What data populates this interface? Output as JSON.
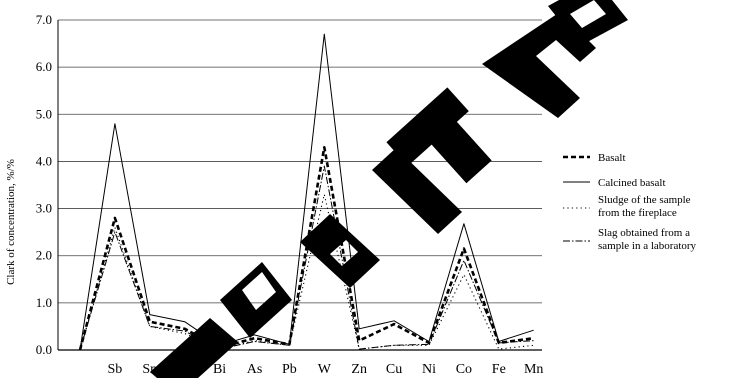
{
  "chart_data": {
    "type": "line",
    "ylabel": "Clark of concentration, %/%",
    "xlabel": "",
    "ylim": [
      0,
      7
    ],
    "yticks": [
      0,
      1,
      2,
      3,
      4,
      5,
      6,
      7
    ],
    "ytick_labels": [
      "0.0",
      "1.0",
      "2.0",
      "3.0",
      "4.0",
      "5.0",
      "6.0",
      "7.0"
    ],
    "categories": [
      "",
      "Sb",
      "Sn",
      "Mo",
      "Bi",
      "As",
      "Pb",
      "W",
      "Zn",
      "Cu",
      "Ni",
      "Co",
      "Fe",
      "Mn"
    ],
    "grid": "horizontal",
    "legend_position": "right",
    "series": [
      {
        "name": "Basalt",
        "style": "dashed-bold",
        "color": "#000000",
        "values": [
          0,
          2.8,
          0.6,
          0.45,
          0.05,
          0.25,
          0.12,
          4.3,
          0.2,
          0.55,
          0.15,
          2.15,
          0.15,
          0.25
        ]
      },
      {
        "name": "Calcined basalt",
        "style": "solid",
        "color": "#000000",
        "values": [
          0,
          4.8,
          0.75,
          0.6,
          0.1,
          0.32,
          0.12,
          6.7,
          0.45,
          0.62,
          0.18,
          2.68,
          0.18,
          0.42
        ]
      },
      {
        "name": "Sludge of the sample from the fireplace",
        "style": "dotted",
        "color": "#000000",
        "values": [
          0,
          2.6,
          0.5,
          0.35,
          0.03,
          0.2,
          0.1,
          3.3,
          0.02,
          0.1,
          0.1,
          1.6,
          0.02,
          0.1
        ]
      },
      {
        "name": "Slag obtained from a sample in a laboratory",
        "style": "dashdot",
        "color": "#000000",
        "values": [
          0,
          2.5,
          0.5,
          0.4,
          0.02,
          0.18,
          0.1,
          3.9,
          0.02,
          0.1,
          0.12,
          1.9,
          0.15,
          0.2
        ]
      }
    ]
  },
  "legend": {
    "items": [
      {
        "label_lines": [
          "Basalt"
        ]
      },
      {
        "label_lines": [
          "Calcined basalt"
        ]
      },
      {
        "label_lines": [
          "Sludge of the sample",
          "from the fireplace"
        ]
      },
      {
        "label_lines": [
          "Slag obtained from a",
          "sample in a laboratory"
        ]
      }
    ]
  },
  "watermark": {
    "color": "#000000",
    "text": "РЕПОЗИТОРИЙ"
  }
}
